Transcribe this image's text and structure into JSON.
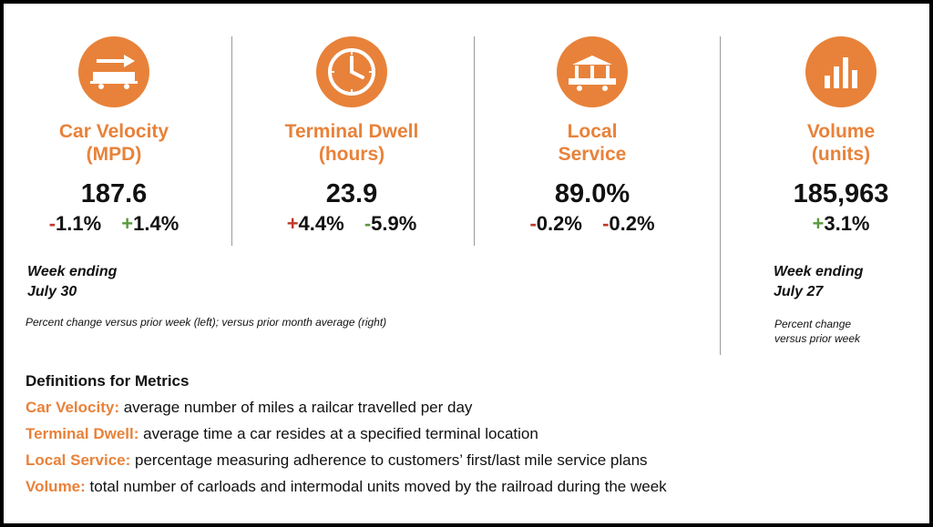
{
  "brand": {
    "accent": "#E8823A",
    "negative": "#C0392B",
    "positive": "#5A9A3C"
  },
  "metrics": [
    {
      "icon": "railcar-velocity-icon",
      "title_line1": "Car Velocity",
      "title_line2": "(MPD)",
      "value": "187.6",
      "change_week_sign": "-",
      "change_week_value": "1.1%",
      "change_month_sign": "+",
      "change_month_value": "1.4%"
    },
    {
      "icon": "clock-icon",
      "title_line1": "Terminal Dwell",
      "title_line2": "(hours)",
      "value": "23.9",
      "change_week_sign": "+",
      "change_week_value": "4.4%",
      "change_month_sign": "-",
      "change_month_value": "5.9%"
    },
    {
      "icon": "terminal-building-icon",
      "title_line1": "Local",
      "title_line2": "Service",
      "value": "89.0%",
      "change_week_sign": "-",
      "change_week_value": "0.2%",
      "change_month_sign": "-",
      "change_month_value": "0.2%"
    },
    {
      "icon": "bar-chart-icon",
      "title_line1": "Volume",
      "title_line2": "(units)",
      "value": "185,963",
      "change_week_sign": "+",
      "change_week_value": "3.1%"
    }
  ],
  "notes": {
    "left_week_line1": "Week ending",
    "left_week_line2": "July 30",
    "left_small": "Percent change versus prior week (left); versus prior month average (right)",
    "right_week_line1": "Week ending",
    "right_week_line2": "July 27",
    "right_small_line1": "Percent change",
    "right_small_line2": "versus prior week"
  },
  "definitions": {
    "heading": "Definitions for Metrics",
    "items": [
      {
        "term": "Car Velocity:",
        "text": " average number of miles a railcar travelled per day"
      },
      {
        "term": "Terminal Dwell:",
        "text": " average time a car resides at a specified terminal location"
      },
      {
        "term": "Local Service:",
        "text": " percentage measuring adherence to customers’ first/last mile service plans"
      },
      {
        "term": "Volume:",
        "text": " total number of carloads and intermodal units moved by the railroad during the week"
      }
    ]
  }
}
